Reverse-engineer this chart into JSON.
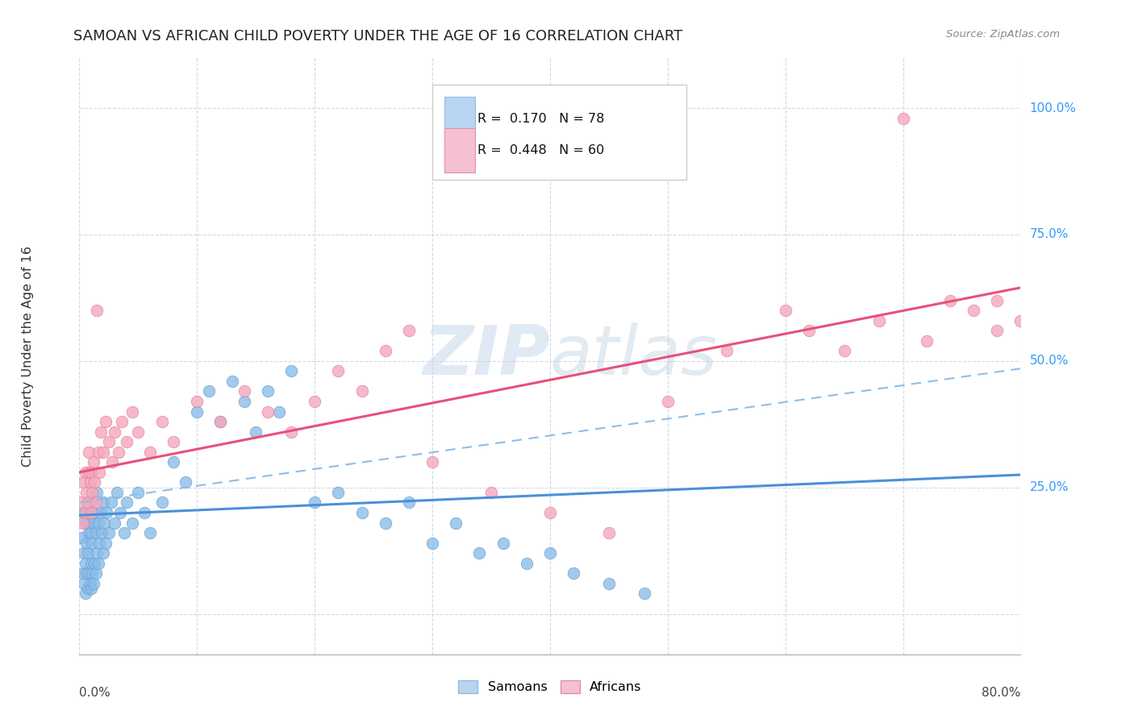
{
  "title": "SAMOAN VS AFRICAN CHILD POVERTY UNDER THE AGE OF 16 CORRELATION CHART",
  "source": "Source: ZipAtlas.com",
  "ylabel": "Child Poverty Under the Age of 16",
  "xmin": 0.0,
  "xmax": 0.8,
  "ymin": -0.08,
  "ymax": 1.1,
  "samoan_color": "#8abde8",
  "samoan_edge": "#6aa0d0",
  "african_color": "#f5a8bc",
  "african_edge": "#e080a0",
  "samoan_line_color": "#4a90d9",
  "african_line_color": "#e8507a",
  "dashed_line_color": "#90bce8",
  "watermark_color": "#d8e8f5",
  "ytick_positions": [
    0.0,
    0.25,
    0.5,
    0.75,
    1.0
  ],
  "ytick_labels": [
    "",
    "25.0%",
    "50.0%",
    "75.0%",
    "100.0%"
  ],
  "xtick_positions": [
    0.0,
    0.1,
    0.2,
    0.3,
    0.4,
    0.5,
    0.6,
    0.7,
    0.8
  ],
  "samoan_line_x0": 0.0,
  "samoan_line_y0": 0.195,
  "samoan_line_x1": 0.8,
  "samoan_line_y1": 0.275,
  "african_line_x0": 0.0,
  "african_line_y0": 0.28,
  "african_line_x1": 0.8,
  "african_line_y1": 0.645,
  "dashed_line_x0": 0.0,
  "dashed_line_y0": 0.22,
  "dashed_line_x1": 0.8,
  "dashed_line_y1": 0.485,
  "samoan_x": [
    0.002,
    0.003,
    0.003,
    0.004,
    0.004,
    0.005,
    0.005,
    0.005,
    0.006,
    0.006,
    0.007,
    0.007,
    0.007,
    0.008,
    0.008,
    0.009,
    0.009,
    0.01,
    0.01,
    0.01,
    0.01,
    0.011,
    0.011,
    0.012,
    0.012,
    0.013,
    0.013,
    0.014,
    0.014,
    0.015,
    0.015,
    0.016,
    0.016,
    0.017,
    0.018,
    0.019,
    0.02,
    0.02,
    0.021,
    0.022,
    0.023,
    0.025,
    0.027,
    0.03,
    0.032,
    0.035,
    0.038,
    0.04,
    0.045,
    0.05,
    0.055,
    0.06,
    0.07,
    0.08,
    0.09,
    0.1,
    0.11,
    0.12,
    0.13,
    0.14,
    0.15,
    0.16,
    0.17,
    0.18,
    0.2,
    0.22,
    0.24,
    0.26,
    0.28,
    0.3,
    0.32,
    0.34,
    0.36,
    0.38,
    0.4,
    0.42,
    0.45,
    0.48
  ],
  "samoan_y": [
    0.15,
    0.08,
    0.2,
    0.06,
    0.12,
    0.04,
    0.1,
    0.18,
    0.08,
    0.14,
    0.05,
    0.12,
    0.2,
    0.08,
    0.16,
    0.06,
    0.18,
    0.05,
    0.1,
    0.16,
    0.22,
    0.08,
    0.14,
    0.06,
    0.18,
    0.1,
    0.2,
    0.08,
    0.16,
    0.12,
    0.24,
    0.1,
    0.18,
    0.14,
    0.2,
    0.16,
    0.12,
    0.22,
    0.18,
    0.14,
    0.2,
    0.16,
    0.22,
    0.18,
    0.24,
    0.2,
    0.16,
    0.22,
    0.18,
    0.24,
    0.2,
    0.16,
    0.22,
    0.3,
    0.26,
    0.4,
    0.44,
    0.38,
    0.46,
    0.42,
    0.36,
    0.44,
    0.4,
    0.48,
    0.22,
    0.24,
    0.2,
    0.18,
    0.22,
    0.14,
    0.18,
    0.12,
    0.14,
    0.1,
    0.12,
    0.08,
    0.06,
    0.04
  ],
  "african_x": [
    0.002,
    0.003,
    0.004,
    0.005,
    0.005,
    0.006,
    0.007,
    0.008,
    0.008,
    0.009,
    0.01,
    0.01,
    0.011,
    0.012,
    0.013,
    0.014,
    0.015,
    0.016,
    0.017,
    0.018,
    0.02,
    0.022,
    0.025,
    0.028,
    0.03,
    0.033,
    0.036,
    0.04,
    0.045,
    0.05,
    0.06,
    0.07,
    0.08,
    0.1,
    0.12,
    0.14,
    0.16,
    0.18,
    0.2,
    0.22,
    0.24,
    0.26,
    0.28,
    0.3,
    0.35,
    0.4,
    0.45,
    0.5,
    0.55,
    0.6,
    0.62,
    0.65,
    0.68,
    0.7,
    0.72,
    0.74,
    0.76,
    0.78,
    0.78,
    0.8
  ],
  "african_y": [
    0.22,
    0.18,
    0.26,
    0.2,
    0.28,
    0.24,
    0.22,
    0.28,
    0.32,
    0.26,
    0.2,
    0.28,
    0.24,
    0.3,
    0.26,
    0.22,
    0.6,
    0.32,
    0.28,
    0.36,
    0.32,
    0.38,
    0.34,
    0.3,
    0.36,
    0.32,
    0.38,
    0.34,
    0.4,
    0.36,
    0.32,
    0.38,
    0.34,
    0.42,
    0.38,
    0.44,
    0.4,
    0.36,
    0.42,
    0.48,
    0.44,
    0.52,
    0.56,
    0.3,
    0.24,
    0.2,
    0.16,
    0.42,
    0.52,
    0.6,
    0.56,
    0.52,
    0.58,
    0.98,
    0.54,
    0.62,
    0.6,
    0.62,
    0.56,
    0.58
  ]
}
